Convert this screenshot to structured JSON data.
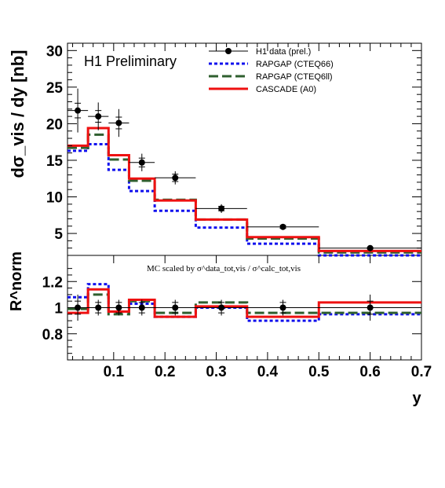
{
  "chart_data": [
    {
      "type": "line",
      "title": "H1 Preliminary",
      "ylabel": "dσ_vis / dy [nb]",
      "xlim": [
        0.01,
        0.7
      ],
      "ylim": [
        2,
        31
      ],
      "yticks": [
        "5",
        "10",
        "15",
        "20",
        "25",
        "30"
      ],
      "bin_edges": [
        0.01,
        0.05,
        0.09,
        0.13,
        0.18,
        0.26,
        0.36,
        0.5,
        0.7
      ],
      "data_points": {
        "name": "H1 data (prel.)",
        "x": [
          0.03,
          0.07,
          0.11,
          0.155,
          0.22,
          0.31,
          0.43,
          0.6
        ],
        "y": [
          21.8,
          21.0,
          20.1,
          14.7,
          12.6,
          8.4,
          5.9,
          3.0
        ],
        "stat_err": [
          1.0,
          0.8,
          0.8,
          0.6,
          0.5,
          0.3,
          0.2,
          0.1
        ],
        "tot_err": [
          3.0,
          1.9,
          1.9,
          1.2,
          0.9,
          0.6,
          0.3,
          0.2
        ]
      },
      "series": [
        {
          "name": "RAPGAP (CTEQ66)",
          "color": "#1010ee",
          "style": "dotted",
          "values": [
            16.3,
            17.2,
            13.7,
            10.8,
            8.1,
            5.8,
            3.6,
            2.0
          ]
        },
        {
          "name": "RAPGAP (CTEQ6ll)",
          "color": "#2f5f2f",
          "style": "dashed",
          "values": [
            16.7,
            18.5,
            15.1,
            12.2,
            9.6,
            6.9,
            4.3,
            2.4
          ]
        },
        {
          "name": "CASCADE (A0)",
          "color": "#ee1111",
          "style": "solid",
          "values": [
            17.0,
            19.4,
            15.7,
            12.5,
            9.5,
            6.9,
            4.5,
            2.6
          ]
        }
      ]
    },
    {
      "type": "line",
      "ylabel": "R^norm",
      "xlabel": "y",
      "annotation": "MC scaled by σ^data_tot,vis / σ^calc_tot,vis",
      "xlim": [
        0.01,
        0.7
      ],
      "ylim": [
        0.6,
        1.4
      ],
      "xticks": [
        "0.1",
        "0.2",
        "0.3",
        "0.4",
        "0.5",
        "0.6",
        "0.7"
      ],
      "yticks": [
        "0.8",
        "1",
        "1.2"
      ],
      "data_points": {
        "x": [
          0.03,
          0.07,
          0.11,
          0.155,
          0.22,
          0.31,
          0.43,
          0.6
        ],
        "y": [
          1.0,
          1.0,
          1.0,
          1.0,
          1.0,
          1.0,
          1.0,
          1.0
        ],
        "stat_err": [
          0.05,
          0.04,
          0.04,
          0.04,
          0.04,
          0.04,
          0.04,
          0.05
        ],
        "tot_err": [
          0.1,
          0.06,
          0.06,
          0.06,
          0.06,
          0.06,
          0.06,
          0.1
        ]
      },
      "series": [
        {
          "name": "RAPGAP (CTEQ66)",
          "color": "#1010ee",
          "style": "dotted",
          "values": [
            1.08,
            1.18,
            0.97,
            1.03,
            0.93,
            1.0,
            0.9,
            0.95
          ]
        },
        {
          "name": "RAPGAP (CTEQ6ll)",
          "color": "#2f5f2f",
          "style": "dashed",
          "values": [
            0.99,
            1.1,
            0.95,
            1.05,
            0.96,
            1.04,
            0.96,
            0.96
          ]
        },
        {
          "name": "CASCADE (A0)",
          "color": "#ee1111",
          "style": "solid",
          "values": [
            0.96,
            1.14,
            0.97,
            1.06,
            0.93,
            1.01,
            0.93,
            1.04
          ]
        }
      ]
    }
  ]
}
